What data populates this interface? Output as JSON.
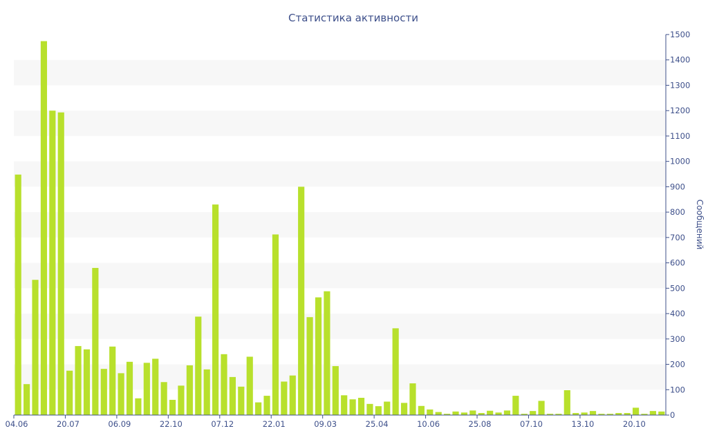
{
  "chart_data": {
    "type": "bar",
    "title": "Статистика активности",
    "ylabel": "Сообщений",
    "xlabel": "",
    "ylim": [
      0,
      1500
    ],
    "yticks": [
      0,
      100,
      200,
      300,
      400,
      500,
      600,
      700,
      800,
      900,
      1000,
      1100,
      1200,
      1300,
      1400,
      1500
    ],
    "y_axis_side": "right",
    "grid": "alternating horizontal bands",
    "bar_color": "#b8e02c",
    "text_color": "#3d4f8a",
    "x_tick_labels": [
      "04.06",
      "20.07",
      "06.09",
      "22.10",
      "07.12",
      "22.01",
      "09.03",
      "25.04",
      "10.06",
      "25.08",
      "07.10",
      "13.10",
      "20.10"
    ],
    "x_tick_positions": [
      0,
      6,
      12,
      18,
      24,
      30,
      36,
      42,
      48,
      54,
      60,
      66,
      72
    ],
    "values": [
      948,
      122,
      533,
      1474,
      1200,
      1193,
      175,
      272,
      259,
      580,
      182,
      270,
      165,
      210,
      66,
      206,
      222,
      130,
      60,
      116,
      196,
      388,
      180,
      830,
      240,
      150,
      112,
      230,
      50,
      76,
      712,
      132,
      156,
      900,
      386,
      464,
      488,
      193,
      78,
      62,
      68,
      44,
      35,
      53,
      342,
      48,
      125,
      36,
      22,
      12,
      5,
      14,
      10,
      18,
      8,
      17,
      10,
      18,
      76,
      5,
      16,
      56,
      5,
      5,
      98,
      8,
      10,
      16,
      5,
      5,
      8,
      8,
      29,
      5,
      16,
      14
    ]
  }
}
